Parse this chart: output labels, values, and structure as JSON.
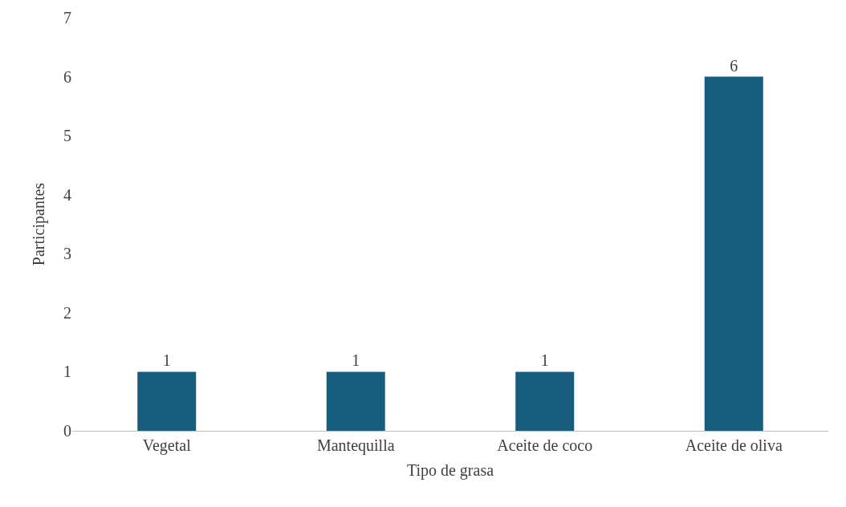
{
  "chart_data": {
    "type": "bar",
    "xlabel": "Tipo de grasa",
    "ylabel": "Participantes",
    "categories": [
      "Vegetal",
      "Mantequilla",
      "Aceite de coco",
      "Aceite de oliva"
    ],
    "values": [
      1,
      1,
      1,
      6
    ],
    "color": "#175e7e",
    "ylim": [
      0,
      7
    ],
    "yticks": [
      0,
      1,
      2,
      3,
      4,
      5,
      6,
      7
    ],
    "grid": false,
    "data_labels": true
  }
}
